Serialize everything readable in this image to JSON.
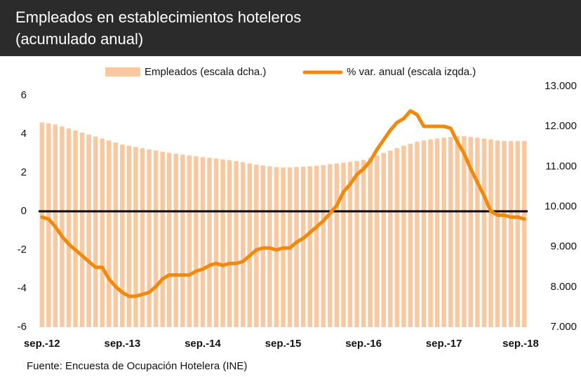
{
  "chart_data": {
    "type": "bar_line",
    "title": "Empleados en establecimientos hoteleros",
    "subtitle": "(acumulado anual)",
    "source": "Fuente: Encuesta de Ocupación Hotelera (INE)",
    "categories": [
      "sep.-12",
      null,
      null,
      null,
      null,
      null,
      null,
      null,
      null,
      null,
      null,
      null,
      "sep.-13",
      null,
      null,
      null,
      null,
      null,
      null,
      null,
      null,
      null,
      null,
      null,
      "sep.-14",
      null,
      null,
      null,
      null,
      null,
      null,
      null,
      null,
      null,
      null,
      null,
      "sep.-15",
      null,
      null,
      null,
      null,
      null,
      null,
      null,
      null,
      null,
      null,
      null,
      "sep.-16",
      null,
      null,
      null,
      null,
      null,
      null,
      null,
      null,
      null,
      null,
      null,
      "sep.-17",
      null,
      null,
      null,
      null,
      null,
      null,
      null,
      null,
      null,
      null,
      null,
      "sep.-18"
    ],
    "series": [
      {
        "name": "Empleados (escala dcha.)",
        "type": "bar",
        "axis": "y2",
        "color": "#f8c9a0",
        "values": [
          12100,
          12080,
          12050,
          12000,
          11950,
          11900,
          11850,
          11800,
          11750,
          11700,
          11650,
          11600,
          11550,
          11520,
          11490,
          11460,
          11430,
          11400,
          11370,
          11340,
          11320,
          11300,
          11280,
          11260,
          11240,
          11220,
          11200,
          11180,
          11160,
          11140,
          11110,
          11080,
          11050,
          11030,
          11010,
          10990,
          10980,
          10980,
          10990,
          11000,
          11010,
          11020,
          11040,
          11060,
          11080,
          11100,
          11120,
          11140,
          11170,
          11220,
          11280,
          11340,
          11400,
          11460,
          11520,
          11570,
          11620,
          11650,
          11680,
          11700,
          11720,
          11740,
          11760,
          11760,
          11740,
          11720,
          11700,
          11680,
          11650,
          11640,
          11640,
          11640,
          11640
        ]
      },
      {
        "name": "% var. anual (escala izqda.)",
        "type": "line",
        "axis": "y",
        "color": "#f08a0c",
        "values": [
          -0.3,
          -0.4,
          -0.8,
          -1.3,
          -1.7,
          -2.0,
          -2.3,
          -2.6,
          -2.9,
          -2.9,
          -3.5,
          -3.9,
          -4.2,
          -4.4,
          -4.4,
          -4.3,
          -4.2,
          -3.9,
          -3.5,
          -3.3,
          -3.3,
          -3.3,
          -3.3,
          -3.1,
          -3.0,
          -2.8,
          -2.7,
          -2.8,
          -2.7,
          -2.7,
          -2.6,
          -2.3,
          -2.0,
          -1.9,
          -1.9,
          -2.0,
          -1.9,
          -1.9,
          -1.6,
          -1.4,
          -1.1,
          -0.8,
          -0.5,
          -0.1,
          0.3,
          1.0,
          1.4,
          1.9,
          2.2,
          2.6,
          3.2,
          3.7,
          4.2,
          4.6,
          4.8,
          5.2,
          5.0,
          4.4,
          4.4,
          4.4,
          4.4,
          4.3,
          3.6,
          3.0,
          2.2,
          1.5,
          0.8,
          0.0,
          -0.2,
          -0.2,
          -0.3,
          -0.3,
          -0.4
        ]
      }
    ],
    "ylim": [
      -6,
      6.47
    ],
    "yticks": [
      -6,
      -4,
      -2,
      0,
      2,
      4,
      6
    ],
    "y2lim": [
      7000,
      13000
    ],
    "y2ticks": [
      {
        "value": 7000,
        "label": "7.000"
      },
      {
        "value": 8000,
        "label": "8.000"
      },
      {
        "value": 9000,
        "label": "9.000"
      },
      {
        "value": 10000,
        "label": "10.000"
      },
      {
        "value": 11000,
        "label": "11.000"
      },
      {
        "value": 12000,
        "label": "12.000"
      },
      {
        "value": 13000,
        "label": "13.000"
      }
    ],
    "zero_line": true,
    "legend": "top"
  }
}
